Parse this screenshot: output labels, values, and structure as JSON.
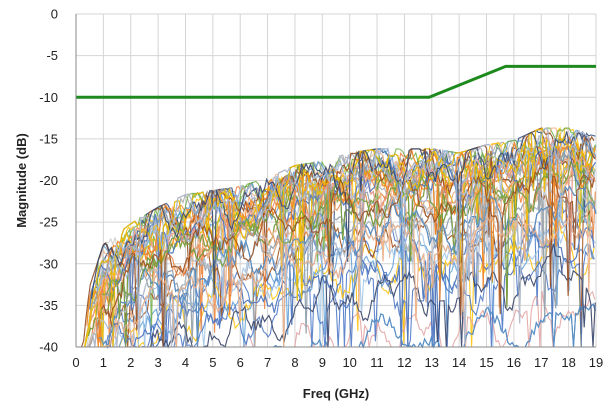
{
  "chart_data": {
    "type": "line",
    "title": "",
    "xlabel": "Freq (GHz)",
    "ylabel": "Magnitude (dB)",
    "xlim": [
      0,
      19
    ],
    "ylim": [
      -40,
      0
    ],
    "x_ticks": [
      "0",
      "1",
      "2",
      "3",
      "4",
      "5",
      "6",
      "7",
      "8",
      "9",
      "10",
      "11",
      "12",
      "13",
      "14",
      "15",
      "16",
      "17",
      "18",
      "19"
    ],
    "y_ticks": [
      "0",
      "-5",
      "-10",
      "-15",
      "-20",
      "-25",
      "-30",
      "-35",
      "-40"
    ],
    "grid": true,
    "legend": "none",
    "limit_line": {
      "color": "#1e8a1e",
      "points": [
        [
          0,
          -10
        ],
        [
          12.9,
          -10
        ],
        [
          15.7,
          -6.3
        ],
        [
          19,
          -6.3
        ]
      ]
    },
    "series_envelope": {
      "description_free": true,
      "x": [
        0.2,
        0.5,
        1,
        2,
        3,
        4,
        5,
        6,
        7,
        8,
        9,
        10,
        11,
        12,
        13,
        14,
        15,
        16,
        17,
        18,
        19
      ],
      "upper_dB": [
        -40,
        -33,
        -28,
        -25.5,
        -23.5,
        -22,
        -21.5,
        -21,
        -20,
        -18.5,
        -18,
        -17,
        -16.5,
        -16.5,
        -16.5,
        -17,
        -16,
        -15.5,
        -14,
        -14,
        -15
      ],
      "lower_dB": [
        -40,
        -40,
        -40,
        -40,
        -40,
        -40,
        -40,
        -40,
        -40,
        -40,
        -40,
        -40,
        -40,
        -40,
        -40,
        -40,
        -40,
        -40,
        -40,
        -40,
        -40
      ]
    },
    "series_palette": [
      "#4472c4",
      "#ed7d31",
      "#a5a5a5",
      "#ffc000",
      "#5b9bd5",
      "#70ad47",
      "#264478",
      "#9e480e",
      "#f4b183",
      "#9dc3e6",
      "#c9c9c9",
      "#e2a0a0"
    ]
  }
}
